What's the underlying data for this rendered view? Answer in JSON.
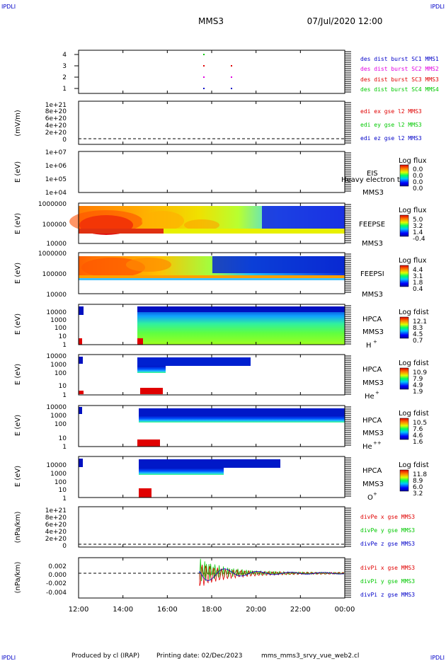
{
  "corner_tags": {
    "top_left": "IPDLI",
    "top_right": "IPDLI",
    "bottom_left": "IPDLI",
    "bottom_right": "IPDLI"
  },
  "header": {
    "spacecraft": "MMS3",
    "datetime": "07/Jul/2020 12:00"
  },
  "footer": {
    "produced_by": "Produced by cl (IRAP)",
    "printing_date": "Printing date: 02/Dec/2023",
    "script_name": "mms_mms3_srvy_vue_web2.cl"
  },
  "colors": {
    "red": "#e00000",
    "magenta": "#e000e0",
    "green": "#00c800",
    "blue": "#0000c8",
    "axis": "#000000"
  },
  "chart_data": [
    {
      "type": "line",
      "panel": "burst",
      "yticks": [
        "4",
        "3",
        "2",
        "1"
      ],
      "legend": [
        {
          "label": "des dist burst SC1 MMS1",
          "color": "#0000c8"
        },
        {
          "label": "des dist burst SC2 MMS2",
          "color": "#e000e0"
        },
        {
          "label": "des dist burst SC3 MMS3",
          "color": "#e00000"
        },
        {
          "label": "des dist burst SC4 MMS4",
          "color": "#00c800"
        }
      ]
    },
    {
      "type": "line",
      "panel": "edi",
      "ylabel": "(mV/m)",
      "yticks": [
        "1e+21",
        "8e+20",
        "6e+20",
        "4e+20",
        "2e+20",
        "0"
      ],
      "legend": [
        {
          "label": "edi ex gse l2 MMS3",
          "color": "#e00000"
        },
        {
          "label": "edi ey gse l2 MMS3",
          "color": "#00c800"
        },
        {
          "label": "edi ez gse l2 MMS3",
          "color": "#0000c8"
        }
      ]
    },
    {
      "type": "heatmap",
      "panel": "eis",
      "ylabel": "E (eV)",
      "yticks": [
        "1e+07",
        "1e+06",
        "1e+05",
        "1e+04"
      ],
      "instrument": "EIS",
      "spacecraft": "MMS3",
      "overlay": "Heavy electron tof",
      "colorbar": {
        "title": "Log flux",
        "ticks": [
          "0.0",
          "0.0",
          "0.0",
          "0.0"
        ]
      }
    },
    {
      "type": "heatmap",
      "panel": "feepse",
      "ylabel": "E (eV)",
      "yticks": [
        "1000000",
        "100000",
        "10000"
      ],
      "instrument": "FEEPSE",
      "spacecraft": "MMS3",
      "colorbar": {
        "title": "Log flux",
        "ticks": [
          "5.0",
          "3.2",
          "1.4",
          "-0.4"
        ]
      }
    },
    {
      "type": "heatmap",
      "panel": "feepsi",
      "ylabel": "E (eV)",
      "yticks": [
        "1000000",
        "100000",
        "10000"
      ],
      "instrument": "FEEPSI",
      "spacecraft": "MMS3",
      "colorbar": {
        "title": "Log flux",
        "ticks": [
          "4.4",
          "3.1",
          "1.8",
          "0.4"
        ]
      }
    },
    {
      "type": "heatmap",
      "panel": "hpca_h",
      "ylabel": "E (eV)",
      "yticks": [
        "10000",
        "1000",
        "100",
        "10",
        "1"
      ],
      "instrument": "HPCA",
      "spacecraft": "MMS3",
      "species": "H",
      "charge": "+",
      "colorbar": {
        "title": "Log fdist",
        "ticks": [
          "12.1",
          "8.3",
          "4.5",
          "0.7"
        ]
      }
    },
    {
      "type": "heatmap",
      "panel": "hpca_he",
      "ylabel": "E (eV)",
      "yticks": [
        "10000",
        "1000",
        "100",
        "10",
        "1"
      ],
      "instrument": "HPCA",
      "spacecraft": "MMS3",
      "species": "He",
      "charge": "+",
      "colorbar": {
        "title": "Log fdist",
        "ticks": [
          "10.9",
          "7.9",
          "4.9",
          "1.9"
        ]
      }
    },
    {
      "type": "heatmap",
      "panel": "hpca_hepp",
      "ylabel": "E (eV)",
      "yticks": [
        "10000",
        "1000",
        "100",
        "10",
        "1"
      ],
      "instrument": "HPCA",
      "spacecraft": "MMS3",
      "species": "He",
      "charge": "++",
      "colorbar": {
        "title": "Log fdist",
        "ticks": [
          "10.5",
          "7.6",
          "4.6",
          "1.6"
        ]
      }
    },
    {
      "type": "heatmap",
      "panel": "hpca_o",
      "ylabel": "E (eV)",
      "yticks": [
        "10000",
        "1000",
        "100",
        "10",
        "1"
      ],
      "instrument": "HPCA",
      "spacecraft": "MMS3",
      "species": "O",
      "charge": "+",
      "colorbar": {
        "title": "Log fdist",
        "ticks": [
          "11.8",
          "8.9",
          "6.0",
          "3.2"
        ]
      }
    },
    {
      "type": "line",
      "panel": "divpe",
      "ylabel": "(nPa/km)",
      "yticks": [
        "1e+21",
        "8e+20",
        "6e+20",
        "4e+20",
        "2e+20",
        "0"
      ],
      "legend": [
        {
          "label": "divPe x gse MMS3",
          "color": "#e00000"
        },
        {
          "label": "divPe y gse MMS3",
          "color": "#00c800"
        },
        {
          "label": "divPe z gse MMS3",
          "color": "#0000c8"
        }
      ]
    },
    {
      "type": "line",
      "panel": "divpi",
      "ylabel": "(nPa/km)",
      "yticks": [
        "0.002",
        "0.000",
        "-0.002",
        "-0.004"
      ],
      "legend": [
        {
          "label": "divPi x gse MMS3",
          "color": "#e00000"
        },
        {
          "label": "divPi y gse MMS3",
          "color": "#00c800"
        },
        {
          "label": "divPi z gse MMS3",
          "color": "#0000c8"
        }
      ]
    }
  ],
  "xaxis": {
    "ticks": [
      "12:00",
      "14:00",
      "16:00",
      "18:00",
      "20:00",
      "22:00",
      "00:00"
    ]
  }
}
